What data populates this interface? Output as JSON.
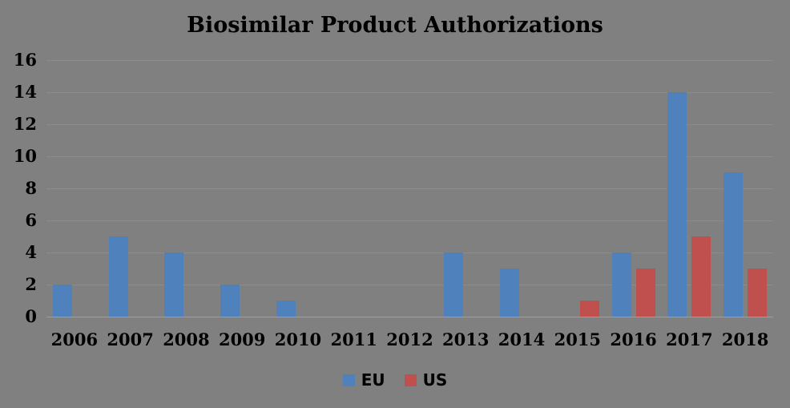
{
  "chart_data": {
    "type": "bar",
    "title": "Biosimilar Product Authorizations",
    "categories": [
      "2006",
      "2007",
      "2008",
      "2009",
      "2010",
      "2011",
      "2012",
      "2013",
      "2014",
      "2015",
      "2016",
      "2017",
      "2018"
    ],
    "series": [
      {
        "name": "EU",
        "color": "#4F81BD",
        "values": [
          2,
          5,
          4,
          2,
          1,
          0,
          0,
          4,
          3,
          0,
          4,
          14,
          9
        ]
      },
      {
        "name": "US",
        "color": "#C0504D",
        "values": [
          0,
          0,
          0,
          0,
          0,
          0,
          0,
          0,
          0,
          1,
          3,
          5,
          3
        ]
      }
    ],
    "y_ticks": [
      0,
      2,
      4,
      6,
      8,
      10,
      12,
      14,
      16
    ],
    "ylim": [
      0,
      16
    ],
    "xlabel": "",
    "ylabel": "",
    "grid": true,
    "legend_position": "bottom",
    "colors": {
      "background": "#808080",
      "gridline": "#8C8C8C",
      "axis_line": "#9E9E9E",
      "text": "#000000"
    }
  }
}
